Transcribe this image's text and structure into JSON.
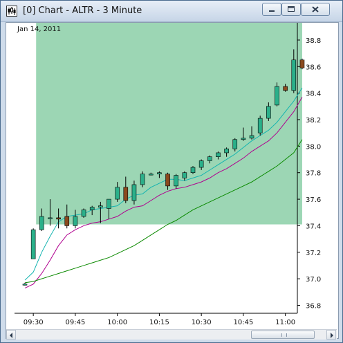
{
  "window": {
    "title": "[0]  Chart - ALTR - 3 Minute",
    "icons": {
      "app": "chart-app-icon",
      "minimize": "minimize-icon",
      "maximize": "maximize-icon",
      "close": "close-icon"
    }
  },
  "chart_data": {
    "type": "candlestick",
    "date_label": "Jan 14, 2011",
    "x_labels": [
      "09:30",
      "09:45",
      "10:00",
      "10:15",
      "10:30",
      "10:45",
      "11:00"
    ],
    "y_ticks": [
      "36.8",
      "37.0",
      "37.2",
      "37.4",
      "37.6",
      "37.8",
      "38.0",
      "38.2",
      "38.4",
      "38.6",
      "38.8"
    ],
    "ylim": [
      36.74,
      38.93
    ],
    "shaded_region": {
      "color": "#9cd6b4",
      "x_start_bar": 2,
      "x_end_bar": 33,
      "y_low": 37.41,
      "y_high": 38.93
    },
    "up_color": "#2bb08a",
    "down_color": "#8b4a1e",
    "candles": [
      {
        "t": "09:27",
        "o": 36.96,
        "h": 36.97,
        "l": 36.95,
        "c": 36.96
      },
      {
        "t": "09:30",
        "o": 37.15,
        "h": 37.38,
        "l": 37.15,
        "c": 37.37
      },
      {
        "t": "09:33",
        "o": 37.37,
        "h": 37.53,
        "l": 37.36,
        "c": 37.47
      },
      {
        "t": "09:36",
        "o": 37.46,
        "h": 37.6,
        "l": 37.4,
        "c": 37.46
      },
      {
        "t": "09:39",
        "o": 37.46,
        "h": 37.53,
        "l": 37.38,
        "c": 37.45
      },
      {
        "t": "09:42",
        "o": 37.47,
        "h": 37.56,
        "l": 37.38,
        "c": 37.4
      },
      {
        "t": "09:45",
        "o": 37.4,
        "h": 37.52,
        "l": 37.38,
        "c": 37.47
      },
      {
        "t": "09:48",
        "o": 37.47,
        "h": 37.53,
        "l": 37.46,
        "c": 37.52
      },
      {
        "t": "09:51",
        "o": 37.52,
        "h": 37.55,
        "l": 37.48,
        "c": 37.54
      },
      {
        "t": "09:54",
        "o": 37.54,
        "h": 37.58,
        "l": 37.42,
        "c": 37.55
      },
      {
        "t": "09:57",
        "o": 37.53,
        "h": 37.6,
        "l": 37.45,
        "c": 37.6
      },
      {
        "t": "10:00",
        "o": 37.6,
        "h": 37.73,
        "l": 37.58,
        "c": 37.69
      },
      {
        "t": "10:03",
        "o": 37.69,
        "h": 37.77,
        "l": 37.57,
        "c": 37.59
      },
      {
        "t": "10:06",
        "o": 37.59,
        "h": 37.74,
        "l": 37.56,
        "c": 37.71
      },
      {
        "t": "10:09",
        "o": 37.71,
        "h": 37.81,
        "l": 37.69,
        "c": 37.79
      },
      {
        "t": "10:12",
        "o": 37.79,
        "h": 37.8,
        "l": 37.78,
        "c": 37.79
      },
      {
        "t": "10:15",
        "o": 37.79,
        "h": 37.81,
        "l": 37.76,
        "c": 37.8
      },
      {
        "t": "10:18",
        "o": 37.79,
        "h": 37.8,
        "l": 37.67,
        "c": 37.7
      },
      {
        "t": "10:21",
        "o": 37.7,
        "h": 37.79,
        "l": 37.68,
        "c": 37.78
      },
      {
        "t": "10:24",
        "o": 37.76,
        "h": 37.81,
        "l": 37.74,
        "c": 37.8
      },
      {
        "t": "10:27",
        "o": 37.8,
        "h": 37.85,
        "l": 37.79,
        "c": 37.84
      },
      {
        "t": "10:30",
        "o": 37.84,
        "h": 37.9,
        "l": 37.82,
        "c": 37.89
      },
      {
        "t": "10:33",
        "o": 37.89,
        "h": 37.93,
        "l": 37.87,
        "c": 37.92
      },
      {
        "t": "10:36",
        "o": 37.92,
        "h": 37.96,
        "l": 37.9,
        "c": 37.95
      },
      {
        "t": "10:39",
        "o": 37.95,
        "h": 37.99,
        "l": 37.92,
        "c": 37.98
      },
      {
        "t": "10:42",
        "o": 37.98,
        "h": 38.06,
        "l": 37.96,
        "c": 38.05
      },
      {
        "t": "10:45",
        "o": 38.05,
        "h": 38.14,
        "l": 38.04,
        "c": 38.06
      },
      {
        "t": "10:48",
        "o": 38.06,
        "h": 38.15,
        "l": 38.05,
        "c": 38.08
      },
      {
        "t": "10:51",
        "o": 38.1,
        "h": 38.23,
        "l": 38.08,
        "c": 38.21
      },
      {
        "t": "10:54",
        "o": 38.21,
        "h": 38.33,
        "l": 38.19,
        "c": 38.3
      },
      {
        "t": "10:57",
        "o": 38.31,
        "h": 38.48,
        "l": 38.3,
        "c": 38.45
      },
      {
        "t": "11:00",
        "o": 38.45,
        "h": 38.47,
        "l": 38.41,
        "c": 38.42
      },
      {
        "t": "11:03",
        "o": 38.42,
        "h": 38.73,
        "l": 38.4,
        "c": 38.65
      },
      {
        "t": "11:06",
        "o": 38.65,
        "h": 38.66,
        "l": 38.58,
        "c": 38.59
      }
    ],
    "ma_series": [
      {
        "color": "#14b4b0",
        "values": [
          36.99,
          37.05,
          37.2,
          37.32,
          37.43,
          37.47,
          37.48,
          37.49,
          37.52,
          37.53,
          37.54,
          37.55,
          37.6,
          37.63,
          37.64,
          37.69,
          37.72,
          37.75,
          37.75,
          37.74,
          37.76,
          37.78,
          37.82,
          37.86,
          37.9,
          37.94,
          37.99,
          38.04,
          38.08,
          38.12,
          38.18,
          38.26,
          38.34,
          38.44
        ]
      },
      {
        "color": "#b0008f",
        "values": [
          36.93,
          36.96,
          37.04,
          37.14,
          37.25,
          37.33,
          37.37,
          37.4,
          37.42,
          37.43,
          37.45,
          37.47,
          37.51,
          37.54,
          37.55,
          37.59,
          37.63,
          37.66,
          37.68,
          37.69,
          37.71,
          37.73,
          37.76,
          37.8,
          37.83,
          37.87,
          37.91,
          37.96,
          38.0,
          38.04,
          38.1,
          38.18,
          38.26,
          38.37
        ]
      },
      {
        "color": "#0b8a00",
        "values": [
          36.97,
          36.98,
          37.0,
          37.02,
          37.04,
          37.06,
          37.08,
          37.1,
          37.12,
          37.14,
          37.16,
          37.19,
          37.22,
          37.25,
          37.29,
          37.33,
          37.37,
          37.41,
          37.44,
          37.48,
          37.52,
          37.55,
          37.58,
          37.61,
          37.64,
          37.67,
          37.7,
          37.73,
          37.77,
          37.81,
          37.85,
          37.9,
          37.95,
          38.05
        ]
      }
    ]
  }
}
